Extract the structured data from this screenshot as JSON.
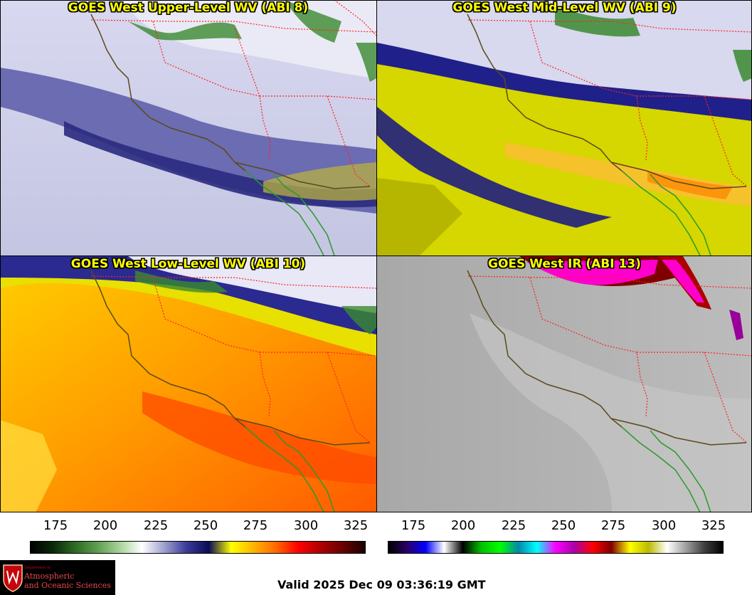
{
  "panels": [
    {
      "title": "GOES West Upper-Level WV (ABI 8)"
    },
    {
      "title": "GOES West Mid-Level WV (ABI 9)"
    },
    {
      "title": "GOES West Low-Level WV (ABI 10)"
    },
    {
      "title": "GOES West IR (ABI 13)"
    }
  ],
  "colorbars": {
    "wv_ticks": [
      "175",
      "200",
      "225",
      "250",
      "275",
      "300",
      "325"
    ],
    "ir_ticks": [
      "175",
      "200",
      "225",
      "250",
      "275",
      "300",
      "325"
    ],
    "wv_colors": [
      "#000000",
      "#0a2a0a",
      "#2e6a24",
      "#5f9f50",
      "#a7d39a",
      "#ffffff",
      "#9da0ce",
      "#3a3a99",
      "#0b0b55",
      "#ffff00",
      "#ffb400",
      "#ff6a00",
      "#ff0000",
      "#b00000",
      "#6a0000",
      "#1a0000"
    ],
    "ir_colors": [
      "#000000",
      "#2a0066",
      "#0000ff",
      "#ffffff",
      "#000000",
      "#00c000",
      "#00ff00",
      "#0088aa",
      "#00ffff",
      "#ff00ff",
      "#aa00aa",
      "#ff0000",
      "#800000",
      "#ffff00",
      "#bbbb00",
      "#ffffff",
      "#a0a0a0",
      "#404040",
      "#000000"
    ]
  },
  "logo": {
    "dept_small": "Department of",
    "line1": "Atmospheric",
    "line2": "and Oceanic Sciences"
  },
  "valid_time": "Valid 2025 Dec 09 03:36:19 GMT"
}
